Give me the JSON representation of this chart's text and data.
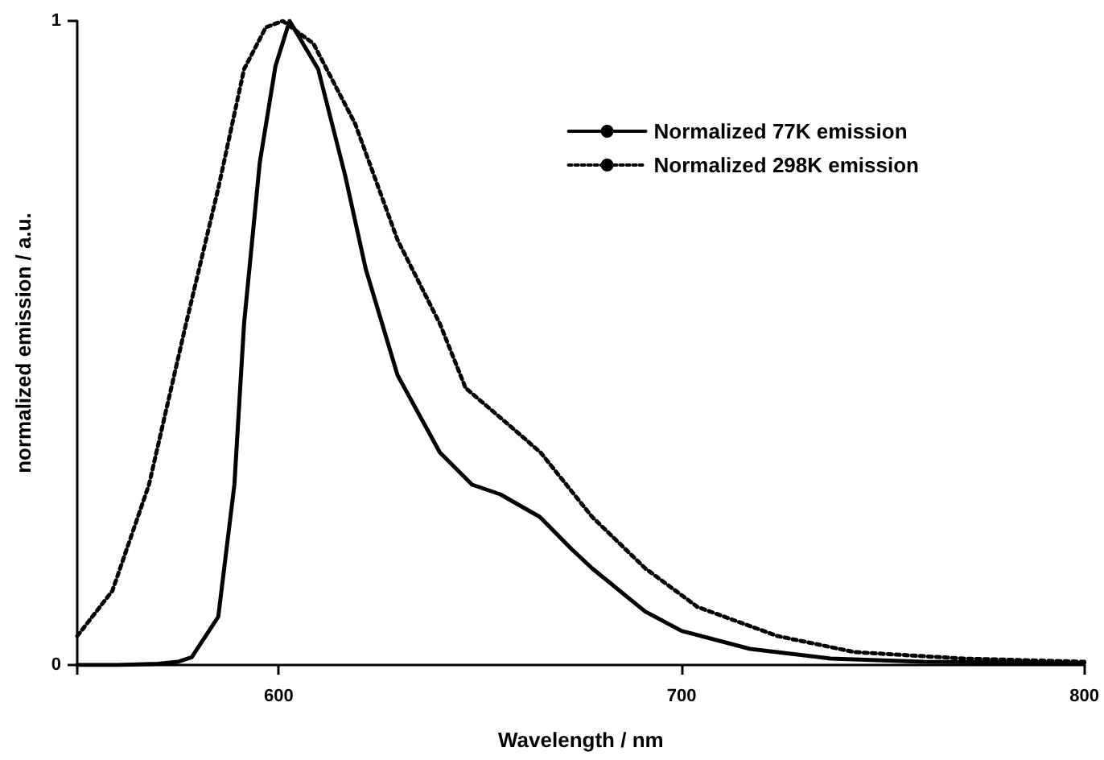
{
  "chart_data": {
    "type": "line",
    "xlabel": "Wavelength / nm",
    "ylabel": "normalized emission / a.u.",
    "xlim": [
      550,
      800
    ],
    "xticks": [
      {
        "value": 550,
        "label": null
      },
      600,
      700,
      800
    ],
    "ylim": [
      0,
      1
    ],
    "yticks": [
      0,
      1
    ],
    "grid": false,
    "legend": "top right",
    "marker": "none",
    "series": [
      {
        "name": "Normalized 77K emission",
        "color": "#000000",
        "line_style": "solid",
        "x": [
          550,
          560,
          570,
          575,
          578.4,
          585,
          589,
          591.4,
          595.3,
          599.2,
          602.7,
          609.8,
          616.5,
          621.6,
          629.5,
          640,
          648,
          655,
          664.8,
          672.7,
          677.8,
          691,
          700,
          717,
          737,
          760,
          800
        ],
        "values": [
          0,
          0,
          0.002,
          0.005,
          0.012,
          0.075,
          0.28,
          0.53,
          0.78,
          0.93,
          1.0,
          0.925,
          0.76,
          0.615,
          0.45,
          0.33,
          0.28,
          0.265,
          0.23,
          0.18,
          0.15,
          0.083,
          0.053,
          0.025,
          0.01,
          0.005,
          0.003
        ]
      },
      {
        "name": "Normalized 298K emission",
        "color": "#000000",
        "line_style": "dotted",
        "x": [
          550,
          558.7,
          567.8,
          577,
          585,
          591.4,
          596.8,
          601,
          608.6,
          619,
          629.5,
          640,
          646.4,
          655.8,
          665,
          677.8,
          691,
          704,
          723.8,
          743,
          770,
          800
        ],
        "values": [
          0.045,
          0.115,
          0.28,
          0.53,
          0.74,
          0.925,
          0.99,
          1.0,
          0.965,
          0.84,
          0.66,
          0.53,
          0.43,
          0.38,
          0.33,
          0.23,
          0.15,
          0.09,
          0.045,
          0.02,
          0.01,
          0.005
        ]
      }
    ]
  }
}
